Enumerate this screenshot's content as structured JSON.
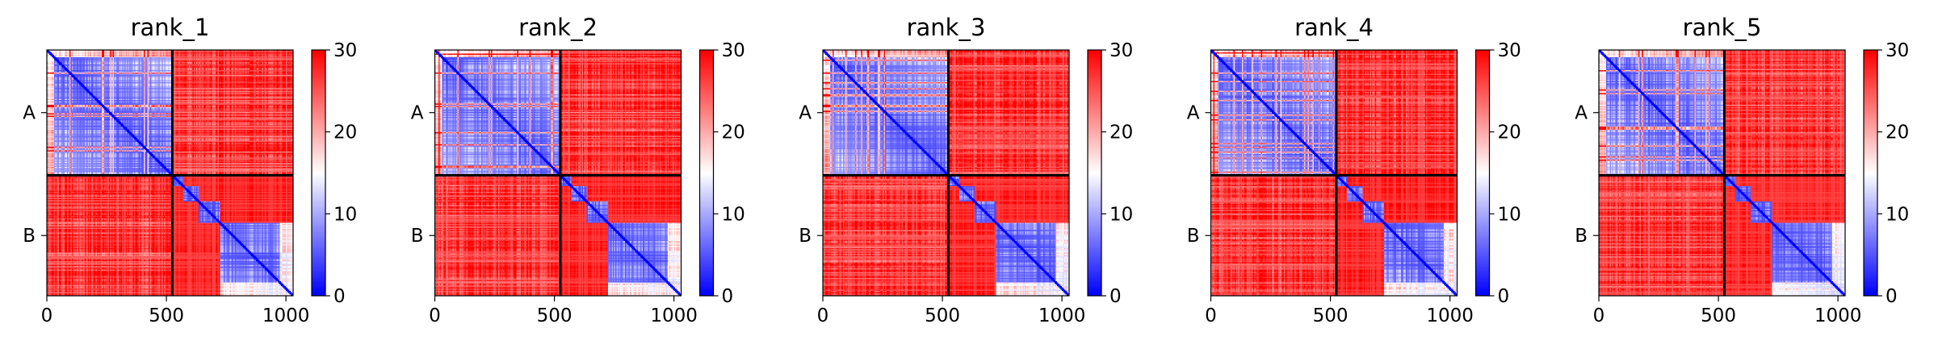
{
  "chart_data": [
    {
      "type": "heatmap",
      "title": "rank_1",
      "x_ticks": [
        0,
        500,
        1000
      ],
      "x_range": [
        0,
        1030
      ],
      "y_tick_labels": [
        "A",
        "B"
      ],
      "chain_boundary": 525,
      "colorbar": {
        "min": 0,
        "max": 30,
        "ticks": [
          0,
          10,
          20,
          30
        ],
        "colors": [
          "#0000ff",
          "#ffffff",
          "#ff0000"
        ]
      },
      "pattern": {
        "within_chain": "low",
        "between_chain": "high"
      }
    },
    {
      "type": "heatmap",
      "title": "rank_2",
      "x_ticks": [
        0,
        500,
        1000
      ],
      "x_range": [
        0,
        1030
      ],
      "y_tick_labels": [
        "A",
        "B"
      ],
      "chain_boundary": 525,
      "colorbar": {
        "min": 0,
        "max": 30,
        "ticks": [
          0,
          10,
          20,
          30
        ],
        "colors": [
          "#0000ff",
          "#ffffff",
          "#ff0000"
        ]
      },
      "pattern": {
        "within_chain": "low",
        "between_chain": "high"
      }
    },
    {
      "type": "heatmap",
      "title": "rank_3",
      "x_ticks": [
        0,
        500,
        1000
      ],
      "x_range": [
        0,
        1030
      ],
      "y_tick_labels": [
        "A",
        "B"
      ],
      "chain_boundary": 525,
      "colorbar": {
        "min": 0,
        "max": 30,
        "ticks": [
          0,
          10,
          20,
          30
        ],
        "colors": [
          "#0000ff",
          "#ffffff",
          "#ff0000"
        ]
      },
      "pattern": {
        "within_chain": "low",
        "between_chain": "high"
      }
    },
    {
      "type": "heatmap",
      "title": "rank_4",
      "x_ticks": [
        0,
        500,
        1000
      ],
      "x_range": [
        0,
        1030
      ],
      "y_tick_labels": [
        "A",
        "B"
      ],
      "chain_boundary": 525,
      "colorbar": {
        "min": 0,
        "max": 30,
        "ticks": [
          0,
          10,
          20,
          30
        ],
        "colors": [
          "#0000ff",
          "#ffffff",
          "#ff0000"
        ]
      },
      "pattern": {
        "within_chain": "low",
        "between_chain": "high"
      }
    },
    {
      "type": "heatmap",
      "title": "rank_5",
      "x_ticks": [
        0,
        500,
        1000
      ],
      "x_range": [
        0,
        1030
      ],
      "y_tick_labels": [
        "A",
        "B"
      ],
      "chain_boundary": 525,
      "colorbar": {
        "min": 0,
        "max": 30,
        "ticks": [
          0,
          10,
          20,
          30
        ],
        "colors": [
          "#0000ff",
          "#ffffff",
          "#ff0000"
        ]
      },
      "pattern": {
        "within_chain": "low",
        "between_chain": "high"
      }
    }
  ]
}
